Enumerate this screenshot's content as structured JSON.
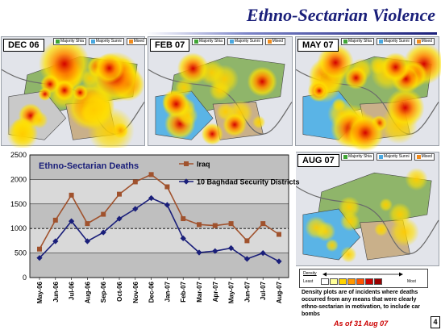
{
  "slide": {
    "title": "Ethno-Sectarian Violence",
    "as_of": "As of 31 Aug 07",
    "page_number": "4",
    "footnote": "Density plots are of incidents where deaths occurred from any means that were clearly ethno-sectarian in motivation, to include car bombs"
  },
  "map_legend": {
    "items": [
      {
        "label": "Majority Shia",
        "color": "#3fa535"
      },
      {
        "label": "Majority Sunni",
        "color": "#4aa8e0"
      },
      {
        "label": "Mixed",
        "color": "#f08c1e"
      }
    ]
  },
  "maps": [
    {
      "label": "DEC 06",
      "intensity": "very high"
    },
    {
      "label": "FEB 07",
      "intensity": "moderate"
    },
    {
      "label": "MAY 07",
      "intensity": "high"
    },
    {
      "label": "AUG 07",
      "intensity": "low"
    }
  ],
  "density_legend": {
    "title": "Density",
    "least": "Least",
    "most": "Most",
    "colors": [
      "#ffffff",
      "#ffff99",
      "#ffd400",
      "#ff9900",
      "#ff5500",
      "#cc0000",
      "#990000"
    ]
  },
  "chart_data": {
    "type": "line",
    "title": "Ethno-Sectarian Deaths",
    "categories": [
      "May-06",
      "Jun-06",
      "Jul-06",
      "Aug-06",
      "Sep-06",
      "Oct-06",
      "Nov-06",
      "Dec-06",
      "Jan-07",
      "Feb-07",
      "Mar-07",
      "Apr-07",
      "May-07",
      "Jun-07",
      "Jul-07",
      "Aug-07"
    ],
    "series": [
      {
        "name": "Iraq",
        "color": "#a0522d",
        "values": [
          580,
          1170,
          1680,
          1100,
          1290,
          1700,
          1950,
          2100,
          1850,
          1200,
          1080,
          1060,
          1100,
          750,
          1100,
          880
        ]
      },
      {
        "name": "10 Baghdad Security Districts",
        "color": "#1a1f7a",
        "values": [
          400,
          740,
          1150,
          740,
          920,
          1200,
          1400,
          1620,
          1480,
          800,
          510,
          540,
          600,
          380,
          500,
          330
        ]
      }
    ],
    "ylim": [
      0,
      2500
    ],
    "yticks": [
      0,
      500,
      1000,
      1500,
      2000,
      2500
    ],
    "grid": true,
    "legend_position": "top-right"
  }
}
